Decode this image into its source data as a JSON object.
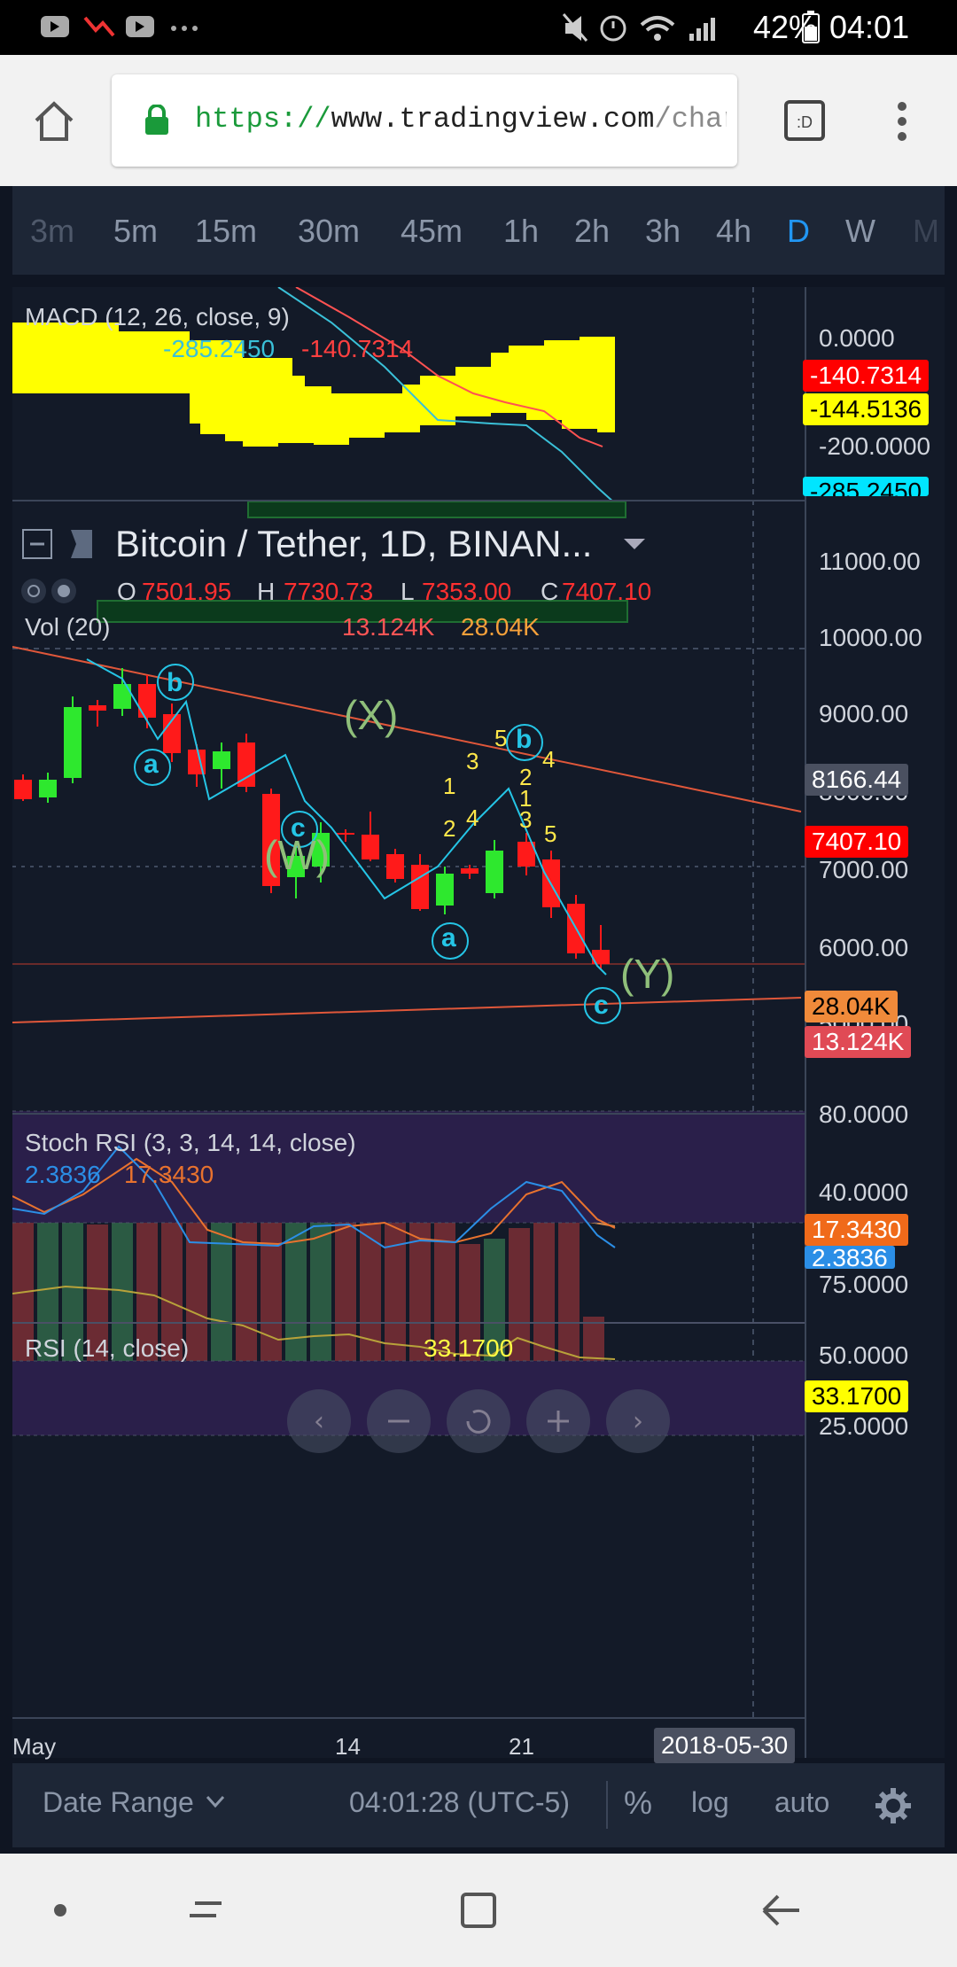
{
  "status_bar": {
    "battery": "42%",
    "time": "04:01"
  },
  "browser": {
    "url_scheme": "https://",
    "url_host": "www.tradingview.com",
    "url_path": "/chart/qlKy"
  },
  "intervals": [
    "3m",
    "5m",
    "15m",
    "30m",
    "45m",
    "1h",
    "2h",
    "3h",
    "4h",
    "D",
    "W",
    "M"
  ],
  "selected_interval": "D",
  "macd": {
    "label": "MACD (12, 26, close, 9)",
    "v1": "-144.5136",
    "v2": "-285.2450",
    "v3": "-140.7314",
    "axis": [
      "0.0000",
      "-200.0000"
    ],
    "tags": [
      "-140.7314",
      "-144.5136",
      "-285.2450"
    ]
  },
  "main": {
    "symbol": "Bitcoin / Tether, 1D, BINAN...",
    "o_label": "O",
    "o": "7501.95",
    "h_label": "H",
    "h": "7730.73",
    "l_label": "L",
    "l": "7353.00",
    "c_label": "C",
    "c": "7407.10",
    "vol_label": "Vol (20)",
    "vol1": "13.124K",
    "vol2": "28.04K",
    "axis": [
      "11000.00",
      "10000.00",
      "9000.00",
      "8000.00",
      "7000.00",
      "6000.00",
      "5000.00"
    ],
    "crosshair_price": "8166.44",
    "last_price": "7407.10",
    "vol_tag1": "28.04K",
    "vol_tag2": "13.124K",
    "wave_labels": {
      "W": "(W)",
      "X": "(X)",
      "Y": "(Y)",
      "a": "a",
      "b": "b",
      "c": "c",
      "n1": "1",
      "n2": "2",
      "n3": "3",
      "n4": "4",
      "n5": "5"
    }
  },
  "stoch": {
    "label": "Stoch RSI (3, 3, 14, 14, close)",
    "k": "2.3836",
    "d": "17.3430",
    "axis": [
      "80.0000",
      "40.0000"
    ],
    "tag_d": "17.3430",
    "tag_k": "2.3836"
  },
  "rsi": {
    "label": "RSI (14, close)",
    "value": "33.1700",
    "axis": [
      "75.0000",
      "50.0000",
      "25.0000"
    ],
    "tag": "33.1700"
  },
  "time_axis": {
    "t1": "May",
    "t2": "14",
    "t3": "21",
    "crosshair_date": "2018-05-30"
  },
  "bottom_bar": {
    "date_range": "Date Range",
    "clock": "04:01:28 (UTC-5)",
    "pct": "%",
    "log": "log",
    "auto": "auto"
  },
  "colors": {
    "up": "#2ee82e",
    "down": "#ff1a1a",
    "macd_fill": "#ffff00",
    "accent": "#2196f3"
  }
}
